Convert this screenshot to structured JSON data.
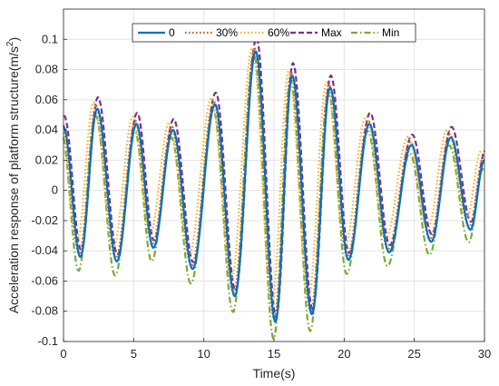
{
  "chart_data": {
    "type": "line",
    "xlabel": "Time(s)",
    "ylabel": "Acceleration response of platform structure(m/s",
    "ylabel_sup": "2",
    "ylabel_close": ")",
    "xlim": [
      0,
      30
    ],
    "ylim": [
      -0.1,
      0.12
    ],
    "xticks": [
      0,
      5,
      10,
      15,
      20,
      25,
      30
    ],
    "yticks": [
      -0.1,
      -0.08,
      -0.06,
      -0.04,
      -0.02,
      0,
      0.02,
      0.04,
      0.06,
      0.08,
      0.1
    ],
    "xtick_labels": [
      "0",
      "5",
      "10",
      "15",
      "20",
      "25",
      "30"
    ],
    "ytick_labels": [
      "-0.1",
      "-0.08",
      "-0.06",
      "-0.04",
      "-0.02",
      "0",
      "0.02",
      "0.04",
      "0.06",
      "0.08",
      "0.1"
    ],
    "grid": true,
    "legend_position": "top-center",
    "base_extrema": [
      [
        0,
        0.042
      ],
      [
        1.2,
        -0.044
      ],
      [
        2.4,
        0.054
      ],
      [
        3.8,
        -0.047
      ],
      [
        5.2,
        0.044
      ],
      [
        6.4,
        -0.038
      ],
      [
        7.8,
        0.04
      ],
      [
        9.2,
        -0.052
      ],
      [
        10.8,
        0.057
      ],
      [
        12.2,
        -0.07
      ],
      [
        13.7,
        0.092
      ],
      [
        15.1,
        -0.087
      ],
      [
        16.3,
        0.076
      ],
      [
        17.7,
        -0.082
      ],
      [
        19.0,
        0.068
      ],
      [
        20.3,
        -0.046
      ],
      [
        21.8,
        0.044
      ],
      [
        23.2,
        -0.041
      ],
      [
        24.8,
        0.03
      ],
      [
        26.2,
        -0.034
      ],
      [
        27.6,
        0.035
      ],
      [
        29.0,
        -0.026
      ],
      [
        30.0,
        0.02
      ]
    ],
    "series": [
      {
        "name": "0",
        "color": "#0072BD",
        "dash": "solid",
        "amp": 1.0,
        "offset": 0.0,
        "shift": 0.0
      },
      {
        "name": "30%",
        "color": "#D95319",
        "dash": "dotted",
        "amp": 1.0,
        "offset": 0.002,
        "shift": -0.08
      },
      {
        "name": "60%",
        "color": "#EDB120",
        "dash": "dotted",
        "amp": 0.95,
        "offset": 0.007,
        "shift": -0.25
      },
      {
        "name": "Max",
        "color": "#7E2F8E",
        "dash": "dashed",
        "amp": 1.03,
        "offset": 0.006,
        "shift": 0.05
      },
      {
        "name": "Min",
        "color": "#77AC30",
        "dash": "dashdot",
        "amp": 1.05,
        "offset": -0.007,
        "shift": -0.12
      }
    ]
  }
}
